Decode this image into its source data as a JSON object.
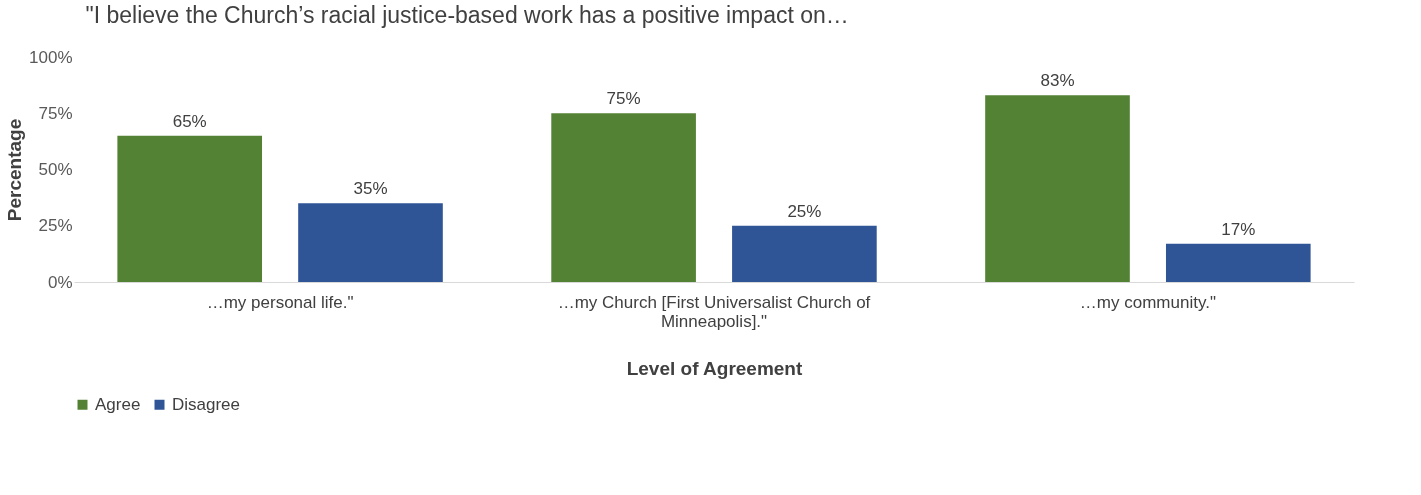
{
  "chart_data": {
    "type": "bar",
    "title": "\"I believe the Church’s racial justice-based work has a positive impact on…",
    "xlabel": "Level of Agreement",
    "ylabel": "Percentage",
    "categories": [
      "…my personal life.\"",
      "…my Church [First Universalist Church of Minneapolis].\"",
      "…my community.\""
    ],
    "series": [
      {
        "name": "Agree",
        "color": "#548235",
        "values": [
          65,
          75,
          83
        ],
        "value_labels": [
          "65%",
          "75%",
          "83%"
        ]
      },
      {
        "name": "Disagree",
        "color": "#2f5597",
        "values": [
          35,
          25,
          17
        ],
        "value_labels": [
          "35%",
          "25%",
          "17%"
        ]
      }
    ],
    "ylim": [
      0,
      100
    ],
    "yticks": [
      {
        "value": 0,
        "label": "0%"
      },
      {
        "value": 25,
        "label": "25%"
      },
      {
        "value": 50,
        "label": "50%"
      },
      {
        "value": 75,
        "label": "75%"
      },
      {
        "value": 100,
        "label": "100%"
      }
    ],
    "grid": false,
    "legend": "bottom"
  }
}
